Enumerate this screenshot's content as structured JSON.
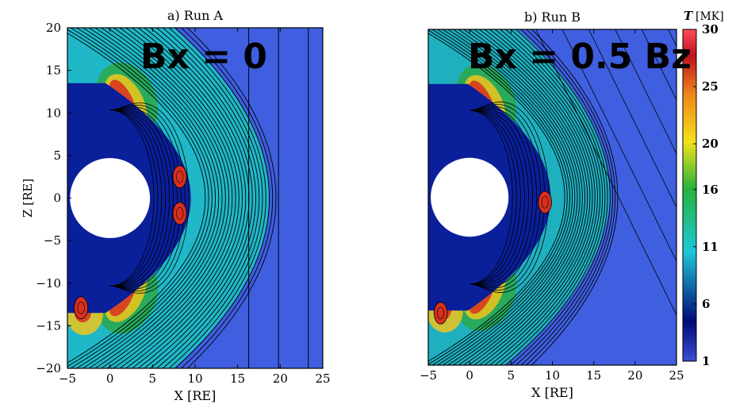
{
  "chart_data": [
    {
      "type": "heatmap",
      "title": "a) Run A",
      "annotation": "Bx = 0",
      "xlabel": "X [RE]",
      "ylabel": "Z [RE]",
      "xlim": [
        -5,
        25
      ],
      "ylim": [
        -20,
        20
      ],
      "xticks": [
        -5,
        0,
        5,
        10,
        15,
        20,
        25
      ],
      "yticks": [
        -20,
        -15,
        -10,
        -5,
        0,
        5,
        10,
        15,
        20
      ],
      "xtick_labels": [
        "−5",
        "0",
        "5",
        "10",
        "15",
        "20",
        "25"
      ],
      "ytick_labels": [
        "−20",
        "−15",
        "−10",
        "−5",
        "0",
        "5",
        "10",
        "15",
        "20"
      ],
      "earth_radius": 4.7,
      "bow_shock_nose_x": 18.7,
      "magnetopause_nose_x": 9.5,
      "solar_wind_field_lines_x": [
        16.3,
        19.8,
        23.3
      ],
      "flux_ropes": [
        {
          "x": 8.2,
          "z": 2.5
        },
        {
          "x": 8.2,
          "z": -1.8
        },
        {
          "x": -3.4,
          "z": -12.9
        }
      ]
    },
    {
      "type": "heatmap",
      "title": "b) Run B",
      "annotation": "Bx = 0.5 Bz",
      "xlabel": "X [RE]",
      "ylabel": "",
      "xlim": [
        -5,
        25
      ],
      "ylim": [
        -20,
        20
      ],
      "xticks": [
        -5,
        0,
        5,
        10,
        15,
        20,
        25
      ],
      "xtick_labels": [
        "−5",
        "0",
        "5",
        "10",
        "15",
        "20",
        "25"
      ],
      "earth_radius": 4.7,
      "bow_shock_nose_x": 17.0,
      "magnetopause_nose_x": 9.8,
      "flux_ropes": [
        {
          "x": 9.1,
          "z": -0.6
        },
        {
          "x": -3.5,
          "z": -13.8
        }
      ],
      "colorbar": {
        "label": "T",
        "unit": "[MK]",
        "min": 1,
        "max": 30,
        "ticks": [
          1,
          6,
          11,
          16,
          20,
          25,
          30
        ],
        "colors": [
          "#3a4fd6",
          "#000a78",
          "#1ec7d8",
          "#27b33c",
          "#f2e21b",
          "#f08a1a",
          "#c0121d",
          "#ff4a5a"
        ]
      }
    }
  ]
}
